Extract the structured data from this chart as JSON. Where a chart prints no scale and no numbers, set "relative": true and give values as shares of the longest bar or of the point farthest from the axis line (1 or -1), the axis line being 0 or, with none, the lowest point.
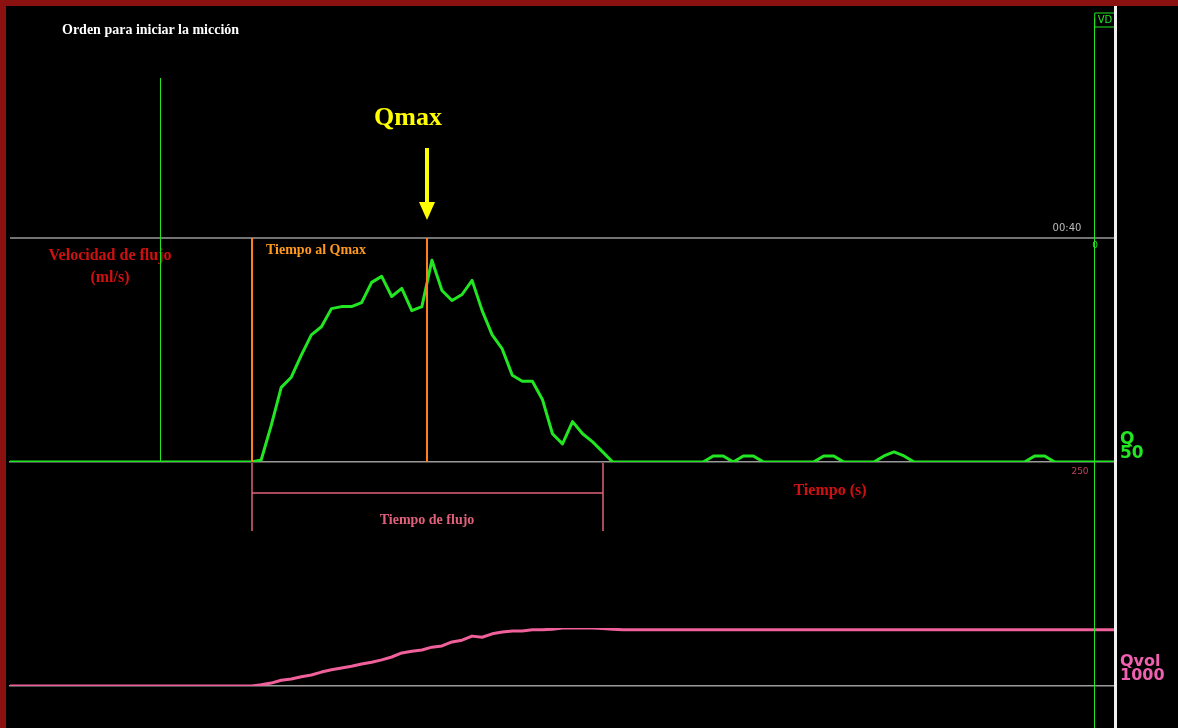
{
  "chart_data": [
    {
      "type": "line",
      "relative": true,
      "xlabel": "Tiempo (s)",
      "ylabel": "Velocidad de flujo (ml/s)",
      "grid": false,
      "legend": false,
      "marker": "none",
      "line_style": "solid",
      "categories": [
        null,
        null,
        null,
        null,
        null,
        null,
        null,
        null,
        null,
        null,
        null,
        null,
        null,
        null,
        null,
        null,
        null,
        null,
        null,
        null,
        null,
        null,
        null,
        null,
        null,
        null,
        null,
        null,
        null,
        null,
        null,
        null,
        null,
        null,
        null,
        null,
        null,
        null,
        null,
        null,
        null,
        null,
        null,
        null,
        null,
        null,
        null,
        null,
        null,
        null,
        null,
        null,
        null,
        null,
        null,
        null,
        null,
        null,
        null,
        null,
        null,
        null,
        null,
        null,
        null,
        null,
        null,
        null,
        null,
        null,
        null,
        null,
        null,
        null,
        null,
        null,
        null,
        null,
        null,
        null,
        null,
        null,
        null,
        null,
        null,
        null,
        null,
        null,
        null,
        null,
        null,
        null,
        null,
        null,
        null,
        null,
        null,
        null,
        null,
        null,
        null,
        null,
        null,
        null,
        null,
        null,
        null,
        null,
        null,
        null,
        null
      ],
      "series": [
        {
          "color": "#22e622",
          "values": [
            0,
            0,
            0,
            0,
            0,
            0,
            0,
            0,
            0,
            0,
            0,
            0,
            0,
            0,
            0,
            0,
            0,
            0,
            0,
            0,
            0,
            0,
            0,
            0,
            0,
            0.01,
            0.18,
            0.37,
            0.42,
            0.53,
            0.63,
            0.67,
            0.76,
            0.77,
            0.77,
            0.79,
            0.89,
            0.92,
            0.82,
            0.86,
            0.75,
            0.77,
            1.0,
            0.85,
            0.8,
            0.83,
            0.9,
            0.75,
            0.63,
            0.56,
            0.43,
            0.4,
            0.4,
            0.31,
            0.14,
            0.09,
            0.2,
            0.14,
            0.1,
            0.05,
            0,
            0,
            0,
            0,
            0,
            0,
            0,
            0,
            0,
            0,
            0.03,
            0.03,
            0,
            0.03,
            0.03,
            0,
            0,
            0,
            0,
            0,
            0,
            0.03,
            0.03,
            0,
            0,
            0,
            0,
            0.03,
            0.05,
            0.03,
            0,
            0,
            0,
            0,
            0,
            0,
            0,
            0,
            0,
            0,
            0,
            0,
            0.03,
            0.03,
            0,
            0,
            0,
            0,
            0,
            0,
            0
          ]
        }
      ],
      "ref_lines": [
        {
          "axis": "y",
          "value": 1.11,
          "color": "#9a9a9a"
        }
      ],
      "annotations": [
        "Qmax",
        "00:40",
        "0",
        "250",
        "VD",
        "Q 50",
        "Orden para iniciar la micción",
        "Tiempo al Qmax",
        "Tiempo de flujo"
      ]
    },
    {
      "type": "line",
      "relative": true,
      "grid": false,
      "legend": false,
      "marker": "none",
      "line_style": "solid",
      "categories": [
        null,
        null,
        null,
        null,
        null,
        null,
        null,
        null,
        null,
        null,
        null,
        null,
        null,
        null,
        null,
        null,
        null,
        null,
        null,
        null,
        null,
        null,
        null,
        null,
        null,
        null,
        null,
        null,
        null,
        null,
        null,
        null,
        null,
        null,
        null,
        null,
        null,
        null,
        null,
        null,
        null,
        null,
        null,
        null,
        null,
        null,
        null,
        null,
        null,
        null,
        null,
        null,
        null,
        null,
        null,
        null,
        null,
        null,
        null,
        null,
        null,
        null,
        null,
        null,
        null,
        null,
        null,
        null,
        null,
        null,
        null,
        null,
        null,
        null,
        null,
        null,
        null,
        null,
        null,
        null,
        null,
        null,
        null,
        null,
        null,
        null,
        null,
        null,
        null,
        null,
        null,
        null,
        null,
        null,
        null,
        null,
        null,
        null,
        null,
        null,
        null,
        null,
        null,
        null,
        null,
        null,
        null,
        null,
        null,
        null,
        null
      ],
      "series": [
        {
          "color": "#f0609a",
          "values": [
            0,
            0,
            0,
            0,
            0,
            0,
            0,
            0,
            0,
            0,
            0,
            0,
            0,
            0,
            0,
            0,
            0,
            0,
            0,
            0,
            0,
            0,
            0,
            0,
            0,
            0.02,
            0.05,
            0.1,
            0.12,
            0.16,
            0.19,
            0.24,
            0.28,
            0.31,
            0.34,
            0.38,
            0.41,
            0.45,
            0.5,
            0.57,
            0.6,
            0.62,
            0.67,
            0.69,
            0.76,
            0.79,
            0.86,
            0.84,
            0.9,
            0.93,
            0.95,
            0.95,
            0.97,
            0.97,
            0.98,
            1,
            1,
            1,
            1,
            0.99,
            0.98,
            0.97,
            0.97,
            0.97,
            0.97,
            0.97,
            0.97,
            0.97,
            0.97,
            0.97,
            0.97,
            0.97,
            0.97,
            0.97,
            0.97,
            0.97,
            0.97,
            0.97,
            0.97,
            0.97,
            0.97,
            0.97,
            0.97,
            0.97,
            0.97,
            0.97,
            0.97,
            0.97,
            0.97,
            0.97,
            0.97,
            0.97,
            0.97,
            0.97,
            0.97,
            0.97,
            0.97,
            0.97,
            0.97,
            0.97,
            0.97,
            0.97,
            0.97,
            0.97,
            0.97,
            0.97,
            0.97,
            0.97,
            0.97,
            0.97,
            0.97
          ]
        }
      ],
      "annotations": [
        "Qvol 1000"
      ]
    }
  ]
}
